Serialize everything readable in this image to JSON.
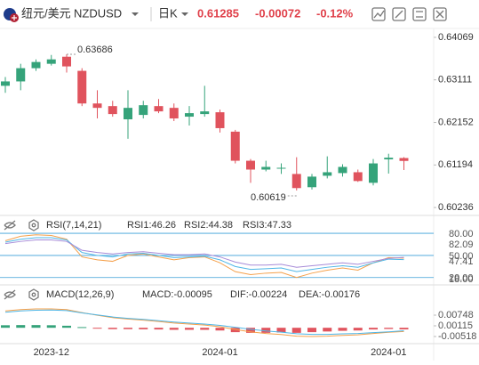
{
  "header": {
    "pair_cn": "纽元/美元",
    "symbol": "NZDUSD",
    "period": "日K",
    "price": "0.61285",
    "change": "-0.00072",
    "change_pct": "-0.12%"
  },
  "chart_data": [
    {
      "type": "candlestick",
      "categories": [
        null,
        null,
        null,
        "2023-12",
        null,
        null,
        null,
        null,
        null,
        null,
        null,
        null,
        null,
        null,
        "2024-01",
        null,
        null,
        null,
        null,
        null,
        null,
        null,
        null,
        null,
        null,
        "2024-01",
        null
      ],
      "open": [
        0.62977,
        0.63076,
        0.63374,
        0.63473,
        0.63632,
        0.63314,
        0.62579,
        0.6252,
        0.62222,
        0.62321,
        0.6252,
        0.6248,
        0.62282,
        0.62341,
        0.62381,
        0.61944,
        0.61289,
        0.6109,
        0.6111,
        0.60991,
        0.60693,
        0.60951,
        0.61011,
        0.6103,
        0.60792,
        0.6132,
        0.6135
      ],
      "high": [
        0.63175,
        0.63473,
        0.63572,
        0.63672,
        0.63686,
        0.63374,
        0.62877,
        0.62639,
        0.62877,
        0.62639,
        0.62679,
        0.62579,
        0.6252,
        0.62977,
        0.6244,
        0.61984,
        0.61328,
        0.61289,
        0.61229,
        0.61368,
        0.60991,
        0.61388,
        0.61209,
        0.6109,
        0.61328,
        0.61447,
        0.6137
      ],
      "low": [
        0.62818,
        0.62877,
        0.63314,
        0.63433,
        0.63275,
        0.6252,
        0.62242,
        0.62282,
        0.61785,
        0.62242,
        0.62361,
        0.62182,
        0.62083,
        0.62282,
        0.61924,
        0.61229,
        0.60792,
        0.6105,
        0.60991,
        0.60619,
        0.6064,
        0.60891,
        0.60931,
        0.60812,
        0.60733,
        0.61,
        0.6108
      ],
      "close": [
        0.63076,
        0.63374,
        0.63513,
        0.63572,
        0.63414,
        0.62579,
        0.6248,
        0.62341,
        0.6248,
        0.6254,
        0.62401,
        0.62242,
        0.62361,
        0.62401,
        0.62023,
        0.61289,
        0.6109,
        0.6115,
        0.6113,
        0.60673,
        0.60931,
        0.6103,
        0.6115,
        0.60832,
        0.61229,
        0.61357,
        0.61285
      ],
      "up_color": "#35a37a",
      "down_color": "#e0535d",
      "ylim": [
        0.60097,
        0.64228
      ],
      "yticks": [
        0.64069,
        0.63111,
        0.62152,
        0.61194,
        0.60236
      ]
    },
    {
      "type": "line",
      "title": "RSI(7,14,21)",
      "series": [
        {
          "name": "RSI1:46.26",
          "color": "#f5a04a",
          "values": [
            70,
            76,
            78,
            77,
            72,
            48,
            44,
            42,
            50,
            52,
            48,
            44,
            47,
            48,
            40,
            28,
            24,
            26,
            27,
            20,
            26,
            30,
            33,
            30,
            40,
            47,
            46.26
          ]
        },
        {
          "name": "RSI2:44.38",
          "color": "#4fb6e6",
          "values": [
            68,
            72,
            74,
            74,
            71,
            54,
            50,
            48,
            52,
            53,
            50,
            47,
            48,
            49,
            44,
            35,
            31,
            32,
            33,
            28,
            31,
            34,
            36,
            34,
            40,
            45,
            44.38
          ]
        },
        {
          "name": "RSI3:47.33",
          "color": "#a78bd8",
          "values": [
            66,
            69,
            71,
            71,
            69,
            57,
            54,
            52,
            54,
            55,
            53,
            51,
            51,
            52,
            48,
            41,
            37,
            37,
            38,
            34,
            36,
            38,
            40,
            38,
            42,
            46,
            47.33
          ]
        }
      ],
      "ylim": [
        12.5,
        82.5
      ],
      "yticks": [
        {
          "value": 80,
          "label": "80.00"
        },
        {
          "value": 50,
          "label": "50.00"
        },
        {
          "value": 20,
          "label": "20.00"
        }
      ],
      "extra_labels": [
        "82.09",
        "47.41",
        "18.00"
      ]
    },
    {
      "type": "macd",
      "title": "MACD(12,26,9)",
      "series": [
        {
          "name": "MACD:-0.00095",
          "color": "#a78bd8",
          "up_color": "#35a37a",
          "down_color": "#e0535d",
          "values": [
            0.0015,
            0.0016,
            0.0016,
            0.0015,
            0.0012,
            0.0004,
            -0.0004,
            -0.0008,
            -0.0008,
            -0.0009,
            -0.001,
            -0.0012,
            -0.0012,
            -0.0012,
            -0.0016,
            -0.0026,
            -0.003,
            -0.003,
            -0.0028,
            -0.003,
            -0.0026,
            -0.0022,
            -0.0018,
            -0.0016,
            -0.001,
            -0.0007,
            -0.00095
          ]
        },
        {
          "name": "DIF:-0.00224",
          "color": "#f5a04a",
          "values": [
            0.01,
            0.0108,
            0.0112,
            0.0112,
            0.0108,
            0.009,
            0.0074,
            0.006,
            0.0052,
            0.0045,
            0.0037,
            0.0028,
            0.0022,
            0.0016,
            0.0006,
            -0.001,
            -0.0024,
            -0.0034,
            -0.004,
            -0.005,
            -0.0052,
            -0.005,
            -0.0045,
            -0.0042,
            -0.0034,
            -0.0027,
            -0.00224
          ]
        },
        {
          "name": "DEA:-0.00176",
          "color": "#4fb6e6",
          "values": [
            0.0092,
            0.01,
            0.0104,
            0.0105,
            0.0102,
            0.0088,
            0.0076,
            0.0064,
            0.0056,
            0.005,
            0.0042,
            0.0034,
            0.0028,
            0.0022,
            0.0014,
            0.0003,
            -0.0009,
            -0.0019,
            -0.0026,
            -0.0035,
            -0.0039,
            -0.0039,
            -0.0036,
            -0.0034,
            -0.0029,
            -0.0024,
            -0.00176
          ]
        }
      ],
      "ylim": [
        -0.01045,
        0.01381
      ],
      "yticks": [
        0.00748,
        0.00115,
        -0.00518
      ]
    }
  ]
}
